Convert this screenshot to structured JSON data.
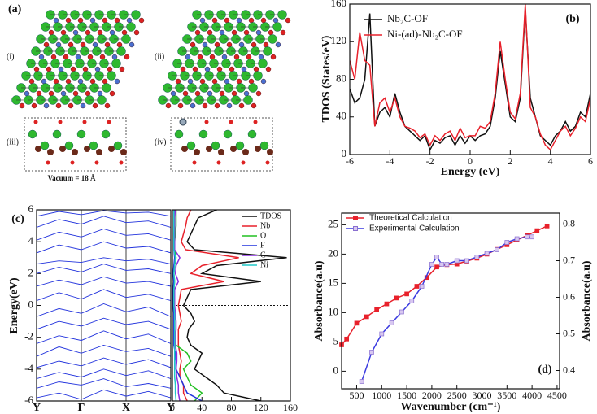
{
  "structure_panel": {
    "label": "(a)",
    "views": [
      "(i)",
      "(ii)",
      "(iii)",
      "(iv)"
    ],
    "note": "Vacuum = 18 Å"
  },
  "chart_data": [
    {
      "type": "line",
      "panel_label": "(b)",
      "xlabel": "Energy (eV)",
      "ylabel": "TDOS (States/eV)",
      "xlim": [
        -6,
        6
      ],
      "ylim": [
        0,
        160
      ],
      "xticks": [
        -6,
        -4,
        -2,
        0,
        2,
        4,
        6
      ],
      "yticks": [
        0,
        40,
        80,
        120,
        160
      ],
      "legend": "top-right",
      "x": [
        -6,
        -5.75,
        -5.5,
        -5.25,
        -5,
        -4.75,
        -4.5,
        -4.25,
        -4,
        -3.75,
        -3.5,
        -3.25,
        -3,
        -2.75,
        -2.5,
        -2.25,
        -2,
        -1.75,
        -1.5,
        -1.25,
        -1,
        -0.75,
        -0.5,
        -0.25,
        0,
        0.25,
        0.5,
        0.75,
        1,
        1.25,
        1.5,
        1.75,
        2,
        2.25,
        2.5,
        2.75,
        3,
        3.25,
        3.5,
        3.75,
        4,
        4.25,
        4.5,
        4.75,
        5,
        5.25,
        5.5,
        5.75,
        6
      ],
      "series": [
        {
          "name": "Nb₂C-OF",
          "color": "#111111",
          "values": [
            70,
            55,
            60,
            80,
            150,
            30,
            45,
            50,
            40,
            65,
            45,
            30,
            25,
            20,
            15,
            20,
            5,
            15,
            12,
            18,
            20,
            10,
            20,
            12,
            20,
            15,
            20,
            22,
            30,
            60,
            110,
            75,
            40,
            35,
            60,
            155,
            60,
            40,
            20,
            15,
            10,
            20,
            25,
            35,
            25,
            30,
            45,
            40,
            65
          ]
        },
        {
          "name": "Ni-(ad)-Nb₂C-OF",
          "color": "#e8212b",
          "values": [
            100,
            80,
            130,
            100,
            95,
            30,
            55,
            60,
            45,
            60,
            40,
            30,
            28,
            25,
            18,
            22,
            10,
            20,
            15,
            22,
            25,
            15,
            28,
            18,
            20,
            20,
            30,
            28,
            35,
            65,
            120,
            80,
            45,
            38,
            65,
            160,
            50,
            40,
            22,
            10,
            5,
            15,
            25,
            30,
            20,
            28,
            40,
            35,
            60
          ]
        }
      ]
    },
    {
      "type": "line",
      "panel_label": "(c)",
      "ylabel": "Energy(eV)",
      "grid": true,
      "xlim": [
        0,
        3
      ],
      "ylim": [
        -6,
        6
      ],
      "yticks": [
        -6,
        -4,
        -2,
        0,
        2,
        4,
        6
      ],
      "xticks": [
        {
          "value": 0,
          "label": "Y"
        },
        {
          "value": 1,
          "label": "Γ"
        },
        {
          "value": 2,
          "label": "X"
        },
        {
          "value": 3,
          "label": "Y"
        }
      ],
      "x": [
        0,
        0.5,
        1,
        1.5,
        2,
        2.5,
        3
      ],
      "series": [
        {
          "color": "#2233dd",
          "values": [
            -5.8,
            -5.5,
            -5.9,
            -5.3,
            -5.7,
            -5.4,
            -5.8
          ]
        },
        {
          "color": "#2233dd",
          "values": [
            -5.2,
            -4.8,
            -5.0,
            -4.6,
            -5.1,
            -4.9,
            -5.2
          ]
        },
        {
          "color": "#2233dd",
          "values": [
            -4.6,
            -4.2,
            -4.5,
            -4.0,
            -4.4,
            -4.1,
            -4.6
          ]
        },
        {
          "color": "#2233dd",
          "values": [
            -3.9,
            -3.5,
            -3.8,
            -3.3,
            -3.7,
            -3.4,
            -3.9
          ]
        },
        {
          "color": "#2233dd",
          "values": [
            -3.2,
            -2.6,
            -3.0,
            -2.5,
            -2.9,
            -2.7,
            -3.2
          ]
        },
        {
          "color": "#2233dd",
          "values": [
            -2.4,
            -1.9,
            -2.2,
            -1.6,
            -2.1,
            -1.8,
            -2.4
          ]
        },
        {
          "color": "#2233dd",
          "values": [
            -1.5,
            -1.0,
            -1.3,
            -0.8,
            -1.2,
            -1.0,
            -1.5
          ]
        },
        {
          "color": "#2233dd",
          "values": [
            -0.7,
            -0.2,
            -0.5,
            0.1,
            -0.4,
            -0.1,
            -0.7
          ]
        },
        {
          "color": "#2233dd",
          "values": [
            0.3,
            0.8,
            0.4,
            1.0,
            0.5,
            0.7,
            0.3
          ]
        },
        {
          "color": "#2233dd",
          "values": [
            1.2,
            1.6,
            1.3,
            1.8,
            1.4,
            1.5,
            1.2
          ]
        },
        {
          "color": "#2233dd",
          "values": [
            2.0,
            2.4,
            2.1,
            2.6,
            2.2,
            2.3,
            2.0
          ]
        },
        {
          "color": "#2233dd",
          "values": [
            2.6,
            2.8,
            2.7,
            3.0,
            2.8,
            2.9,
            2.6
          ]
        },
        {
          "color": "#2233dd",
          "values": [
            3.3,
            3.8,
            3.5,
            4.0,
            3.6,
            3.7,
            3.3
          ]
        },
        {
          "color": "#2233dd",
          "values": [
            4.1,
            4.6,
            4.3,
            4.8,
            4.4,
            4.5,
            4.1
          ]
        },
        {
          "color": "#2233dd",
          "values": [
            4.9,
            5.4,
            5.1,
            5.6,
            5.2,
            5.3,
            4.9
          ]
        },
        {
          "color": "#2233dd",
          "values": [
            5.6,
            5.9,
            5.7,
            5.95,
            5.8,
            5.85,
            5.6
          ]
        }
      ]
    },
    {
      "type": "line",
      "orientation": "horizontal",
      "xlim": [
        0,
        160
      ],
      "ylim": [
        -6,
        6
      ],
      "xticks": [
        0,
        40,
        80,
        120,
        160
      ],
      "fermi_level": 0,
      "legend": "top-right",
      "y": [
        -6,
        -5.5,
        -5,
        -4.5,
        -4,
        -3.5,
        -3,
        -2.5,
        -2,
        -1.5,
        -1,
        -0.5,
        0,
        0.5,
        1,
        1.5,
        2,
        2.5,
        3,
        3.5,
        4,
        4.5,
        5,
        5.5,
        6
      ],
      "series": [
        {
          "name": "TDOS",
          "color": "#111111",
          "values": [
            120,
            70,
            60,
            45,
            30,
            35,
            40,
            25,
            20,
            22,
            30,
            25,
            15,
            20,
            25,
            120,
            40,
            60,
            155,
            30,
            20,
            25,
            30,
            35,
            60
          ]
        },
        {
          "name": "Nb",
          "color": "#e8212b",
          "values": [
            20,
            15,
            15,
            10,
            10,
            12,
            10,
            8,
            8,
            8,
            12,
            10,
            8,
            10,
            12,
            70,
            25,
            40,
            90,
            18,
            12,
            15,
            18,
            20,
            25
          ]
        },
        {
          "name": "O",
          "color": "#22c022",
          "values": [
            30,
            40,
            25,
            20,
            15,
            25,
            20,
            5,
            3,
            3,
            3,
            3,
            2,
            2,
            2,
            3,
            2,
            3,
            5,
            3,
            3,
            4,
            5,
            5,
            5
          ]
        },
        {
          "name": "F",
          "color": "#2233dd",
          "values": [
            40,
            20,
            15,
            10,
            5,
            5,
            4,
            2,
            2,
            2,
            2,
            2,
            1,
            1,
            1,
            2,
            1,
            2,
            3,
            2,
            2,
            2,
            3,
            3,
            3
          ]
        },
        {
          "name": "C",
          "color": "#8a2be2",
          "values": [
            10,
            8,
            8,
            6,
            5,
            6,
            6,
            4,
            4,
            5,
            5,
            4,
            3,
            3,
            3,
            8,
            4,
            5,
            10,
            3,
            3,
            3,
            3,
            3,
            4
          ]
        },
        {
          "name": "Ni",
          "color": "#20c8c8",
          "values": [
            5,
            4,
            4,
            3,
            3,
            3,
            3,
            3,
            3,
            3,
            3,
            3,
            2,
            2,
            2,
            3,
            2,
            3,
            4,
            2,
            2,
            2,
            2,
            2,
            2
          ]
        }
      ]
    },
    {
      "type": "line",
      "panel_label": "(d)",
      "xlabel": "Wavenumber (cm⁻¹)",
      "ylabel": "Absorbance(a.u)",
      "y2label": "Absorbance(a.u)",
      "legend": "top-left",
      "xlim": [
        200,
        4550
      ],
      "ylim": [
        -3,
        27
      ],
      "y2lim": [
        0.35,
        0.83
      ],
      "xticks": [
        500,
        1000,
        1500,
        2000,
        2500,
        3000,
        3500,
        4000,
        4500
      ],
      "yticks": [
        0,
        5,
        10,
        15,
        20,
        25
      ],
      "y2ticks": [
        0.4,
        0.5,
        0.6,
        0.7,
        0.8
      ],
      "series": [
        {
          "name": "Theoretical Calculation",
          "color": "#e8212b",
          "marker": "filled-square",
          "x": [
            200,
            300,
            500,
            700,
            900,
            1100,
            1300,
            1500,
            1700,
            1900,
            2100,
            2300,
            2500,
            2700,
            2900,
            3100,
            3300,
            3500,
            3700,
            3900,
            4100,
            4300
          ],
          "values": [
            4.5,
            5.5,
            8.2,
            9.3,
            10.5,
            11.5,
            12.5,
            13.2,
            14.5,
            16,
            17.8,
            18.2,
            18.3,
            18.8,
            19.3,
            20,
            20.8,
            21.6,
            22.4,
            23.2,
            24,
            24.8
          ]
        },
        {
          "name": "Experimental Calculation",
          "color": "#3a3ae0",
          "marker": "open-square",
          "axis": "y2",
          "x": [
            600,
            800,
            1000,
            1200,
            1400,
            1600,
            1800,
            2000,
            2100,
            2200,
            2300,
            2500,
            2700,
            2900,
            3100,
            3300,
            3500,
            3700,
            3900,
            4000
          ],
          "values": [
            0.37,
            0.45,
            0.5,
            0.53,
            0.56,
            0.59,
            0.63,
            0.69,
            0.71,
            0.69,
            0.69,
            0.7,
            0.7,
            0.71,
            0.72,
            0.73,
            0.75,
            0.76,
            0.765,
            0.765
          ]
        }
      ]
    }
  ]
}
